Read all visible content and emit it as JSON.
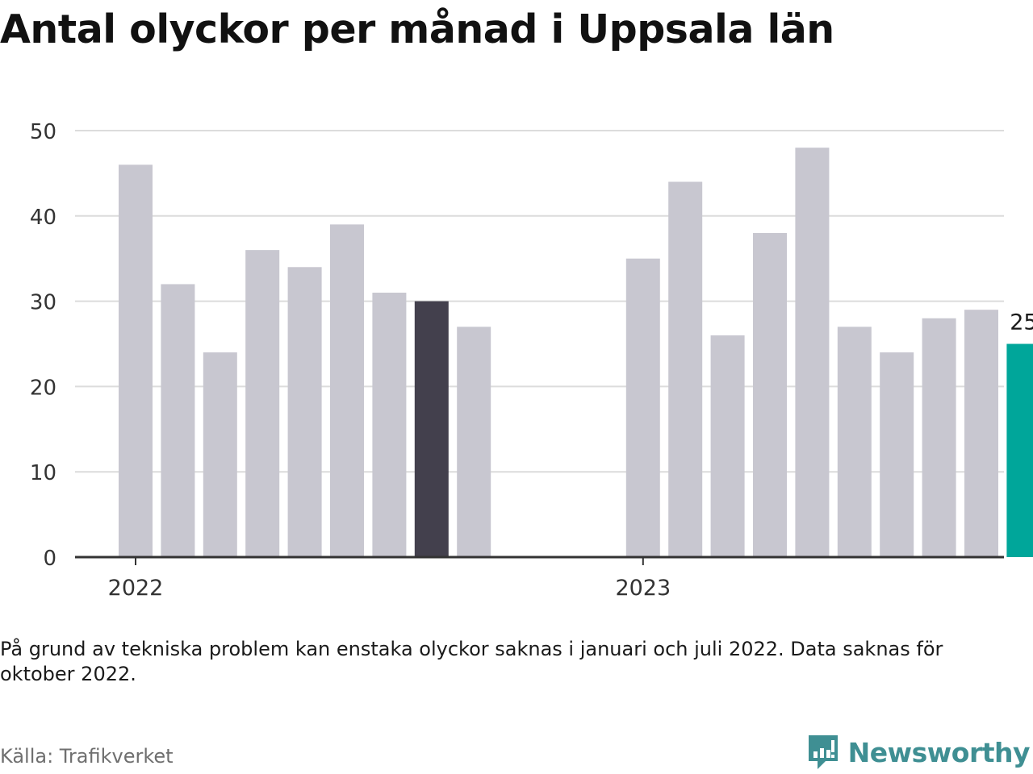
{
  "title": "Antal olyckor per månad i Uppsala län",
  "chart_data": {
    "type": "bar",
    "title": "Antal olyckor per månad i Uppsala län",
    "ylim": [
      0,
      50
    ],
    "yticks": [
      0,
      10,
      20,
      30,
      40,
      50
    ],
    "grid": true,
    "year_labels": [
      {
        "label": "2022",
        "at": 0
      },
      {
        "label": "2023",
        "at": 12
      }
    ],
    "categories": [
      "2022-01",
      "2022-02",
      "2022-03",
      "2022-04",
      "2022-05",
      "2022-06",
      "2022-07",
      "2022-08",
      "2022-09",
      "2022-10",
      "2022-11",
      "2022-12",
      "2023-01",
      "2023-02",
      "2023-03",
      "2023-04",
      "2023-05",
      "2023-06",
      "2023-07",
      "2023-08",
      "2023-09",
      "2023-10"
    ],
    "values": [
      46,
      32,
      24,
      36,
      34,
      39,
      31,
      30,
      27,
      null,
      null,
      null,
      35,
      44,
      26,
      38,
      48,
      27,
      24,
      28,
      29,
      25
    ],
    "highlight": [
      {
        "index": 7,
        "color": "#43404d"
      },
      {
        "index": 21,
        "color": "#00a69a",
        "label": "25"
      }
    ],
    "colors": {
      "bar": "#c8c7d0",
      "grid": "#dcdcdc",
      "axis": "#333333"
    }
  },
  "note": "På grund av tekniska problem kan enstaka olyckor saknas i januari och juli 2022. Data saknas för oktober 2022.",
  "source": "Källa: Trafikverket",
  "brand": {
    "name": "Newsworthy",
    "color": "#3f8f93",
    "icon": "newsworthy-logo-icon"
  }
}
